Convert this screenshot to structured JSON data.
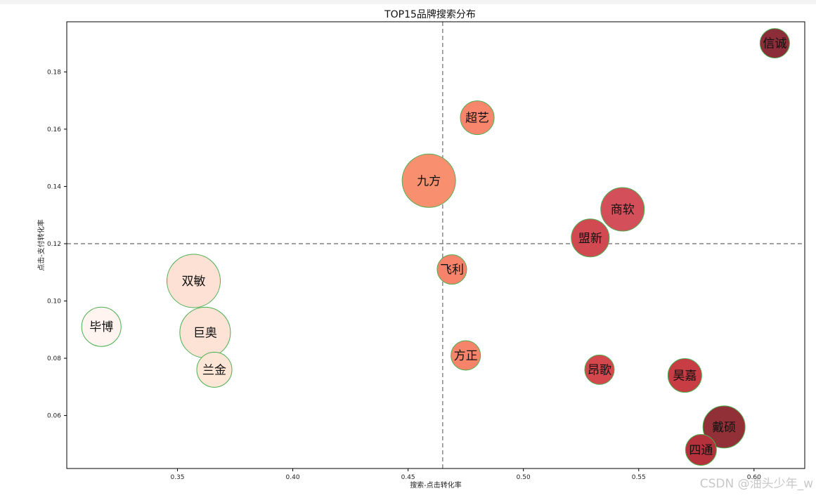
{
  "watermark": "CSDN @油头少年_w",
  "chart_data": {
    "type": "scatter",
    "title": "TOP15品牌搜索分布",
    "xlabel": "搜索-点击转化率",
    "ylabel": "点击-支付转化率",
    "xlim": [
      0.302,
      0.622
    ],
    "ylim": [
      0.0415,
      0.1975
    ],
    "xticks": [
      0.35,
      0.4,
      0.45,
      0.5,
      0.55,
      0.6
    ],
    "xtick_labels": [
      "0.35",
      "0.40",
      "0.45",
      "0.50",
      "0.55",
      "0.60"
    ],
    "yticks": [
      0.06,
      0.08,
      0.1,
      0.12,
      0.14,
      0.16,
      0.18
    ],
    "ytick_labels": [
      "0.06",
      "0.08",
      "0.10",
      "0.12",
      "0.14",
      "0.16",
      "0.18"
    ],
    "grid": false,
    "reference_lines": {
      "x": 0.465,
      "y": 0.12,
      "style": "dashed",
      "color": "#777777"
    },
    "bubble_edge_color": "#4caf50",
    "points": [
      {
        "label": "信诚",
        "x": 0.609,
        "y": 0.19,
        "r": 21,
        "color": "#8c2d3a"
      },
      {
        "label": "超艺",
        "x": 0.48,
        "y": 0.164,
        "r": 24,
        "color": "#f7866c"
      },
      {
        "label": "九方",
        "x": 0.459,
        "y": 0.142,
        "r": 38,
        "color": "#f89070"
      },
      {
        "label": "商软",
        "x": 0.543,
        "y": 0.132,
        "r": 31,
        "color": "#d3505a"
      },
      {
        "label": "盟新",
        "x": 0.529,
        "y": 0.122,
        "r": 27,
        "color": "#d24a51"
      },
      {
        "label": "飞利",
        "x": 0.469,
        "y": 0.111,
        "r": 21,
        "color": "#f7836b"
      },
      {
        "label": "双敏",
        "x": 0.357,
        "y": 0.107,
        "r": 38,
        "color": "#fde1d4"
      },
      {
        "label": "毕博",
        "x": 0.317,
        "y": 0.091,
        "r": 28,
        "color": "#fff4f0"
      },
      {
        "label": "巨奥",
        "x": 0.362,
        "y": 0.089,
        "r": 36,
        "color": "#fde3d6"
      },
      {
        "label": "方正",
        "x": 0.475,
        "y": 0.081,
        "r": 21,
        "color": "#f5846a"
      },
      {
        "label": "兰金",
        "x": 0.366,
        "y": 0.076,
        "r": 25,
        "color": "#fde6d5"
      },
      {
        "label": "昂歌",
        "x": 0.533,
        "y": 0.076,
        "r": 21,
        "color": "#d3474d"
      },
      {
        "label": "昊嘉",
        "x": 0.57,
        "y": 0.074,
        "r": 24,
        "color": "#c83c44"
      },
      {
        "label": "戴硕",
        "x": 0.587,
        "y": 0.056,
        "r": 30,
        "color": "#923038"
      },
      {
        "label": "四通",
        "x": 0.577,
        "y": 0.048,
        "r": 22,
        "color": "#b5323c"
      }
    ]
  }
}
